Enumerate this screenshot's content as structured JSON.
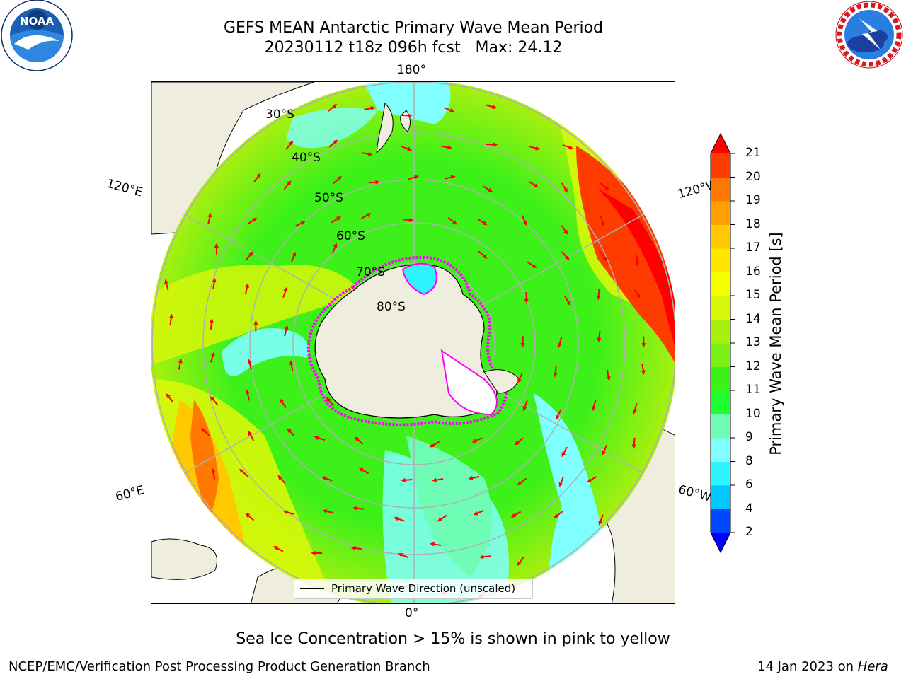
{
  "header": {
    "title_line1": "GEFS MEAN Antarctic Primary Wave Mean Period",
    "title_line2": "20230112 t18z 096h fcst   Max: 24.12"
  },
  "logos": {
    "left": {
      "name": "noaa-logo",
      "text": "NOAA",
      "ring_text": "NATIONAL OCEANIC AND ATMOSPHERIC ADMINISTRATION · U.S. DEPARTMENT OF COMMERCE"
    },
    "right": {
      "name": "nws-logo",
      "ring_text": "NATIONAL WEATHER SERVICE"
    }
  },
  "map": {
    "projection": "South Polar Stereographic",
    "longitude_labels": {
      "top": "180°",
      "bottom": "0°",
      "upper_left": "120°E",
      "upper_right": "120°W",
      "lower_left": "60°E",
      "lower_right": "60°W"
    },
    "latitude_labels": [
      "30°S",
      "40°S",
      "50°S",
      "60°S",
      "70°S",
      "80°S"
    ],
    "legend_label": "Primary Wave Direction (unscaled)",
    "arrow_color": "#ff0000",
    "land_color": "#efedde",
    "ice_edge_colors": [
      "#ff00ff",
      "#ffff00"
    ]
  },
  "colorbar": {
    "label": "Primary Wave Mean Period [s]",
    "ticks": [
      "2",
      "4",
      "6",
      "8",
      "9",
      "10",
      "11",
      "12",
      "13",
      "14",
      "15",
      "16",
      "17",
      "18",
      "19",
      "20",
      "21"
    ],
    "colors": [
      "#0048ff",
      "#00c8ff",
      "#2ef4ff",
      "#80ffff",
      "#6ffcb4",
      "#1eff2d",
      "#3ef01a",
      "#7af016",
      "#aaf00f",
      "#d6f70a",
      "#f6ff00",
      "#ffe500",
      "#ffc800",
      "#ffa000",
      "#ff7800",
      "#ff3c00"
    ],
    "under_color": "#0000ff",
    "over_color": "#ff0000"
  },
  "caption": "Sea Ice Concentration > 15% is shown in pink to yellow",
  "footer": {
    "left": "NCEP/EMC/Verification Post Processing Product Generation Branch",
    "right_date": "14 Jan 2023 on ",
    "right_host": "Hera"
  }
}
